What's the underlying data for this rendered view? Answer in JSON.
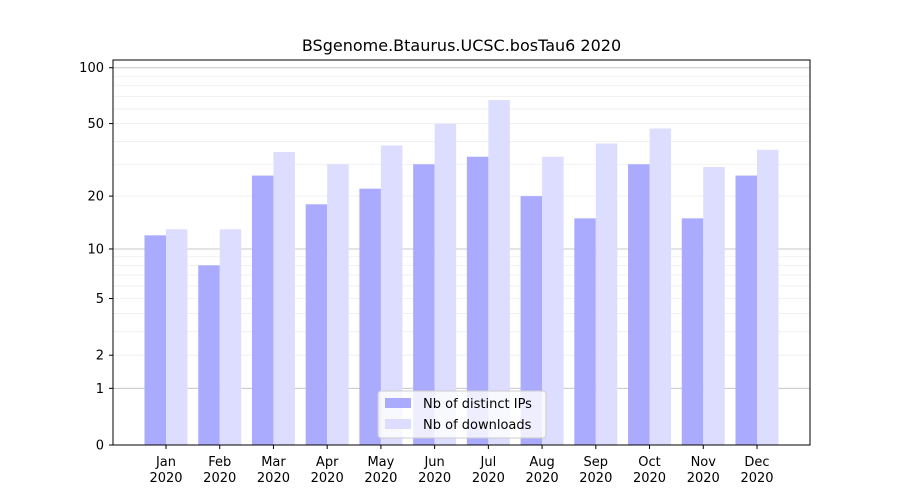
{
  "chart_data": {
    "type": "bar",
    "title": "BSgenome.Btaurus.UCSC.bosTau6 2020",
    "xlabel": "",
    "ylabel": "",
    "yscale": "log(1+y)",
    "ylim": [
      0,
      110
    ],
    "yticks": [
      0,
      1,
      2,
      5,
      10,
      20,
      50,
      100
    ],
    "categories": [
      [
        "Jan",
        "2020"
      ],
      [
        "Feb",
        "2020"
      ],
      [
        "Mar",
        "2020"
      ],
      [
        "Apr",
        "2020"
      ],
      [
        "May",
        "2020"
      ],
      [
        "Jun",
        "2020"
      ],
      [
        "Jul",
        "2020"
      ],
      [
        "Aug",
        "2020"
      ],
      [
        "Sep",
        "2020"
      ],
      [
        "Oct",
        "2020"
      ],
      [
        "Nov",
        "2020"
      ],
      [
        "Dec",
        "2020"
      ]
    ],
    "series": [
      {
        "name": "Nb of distinct IPs",
        "color": "#aaaaff",
        "values": [
          12,
          8,
          26,
          18,
          22,
          30,
          33,
          20,
          15,
          30,
          15,
          26
        ]
      },
      {
        "name": "Nb of downloads",
        "color": "#ddddff",
        "values": [
          13,
          13,
          35,
          30,
          38,
          50,
          67,
          33,
          39,
          47,
          29,
          36
        ]
      }
    ],
    "grid": true,
    "legend_position": "bottom-center"
  }
}
